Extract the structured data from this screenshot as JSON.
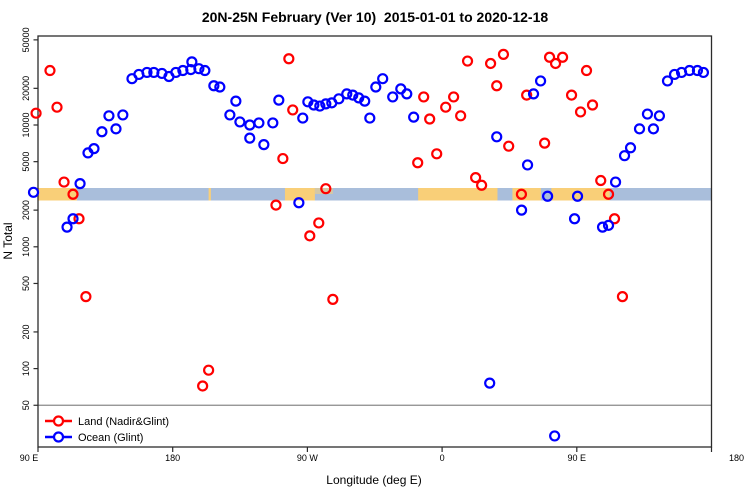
{
  "title": "20N-25N February (Ver 10)  2015-01-01 to 2020-12-18",
  "chart_data": {
    "type": "scatter",
    "xlabel": "Longitude (deg E)",
    "ylabel": "N Total",
    "x_axis": {
      "min_lon": 90,
      "max_lon": 540,
      "tick_lons": [
        90,
        180,
        270,
        360,
        450,
        540
      ],
      "tick_labels": [
        "90 E",
        "180",
        "90 W",
        "0",
        "90 E",
        "180"
      ]
    },
    "y_axis": {
      "scale": "log",
      "ticks": [
        50000,
        20000,
        10000,
        5000,
        2000,
        1000,
        500,
        200,
        100,
        50
      ],
      "ylim": [
        23,
        54000
      ]
    },
    "grid": "off",
    "legend_position": "bottom-left",
    "marker": "open-circle",
    "reference_line_y": 50,
    "reference_line_color": "#8a8a8a",
    "series": [
      {
        "id": "land",
        "name": "Land (Nadir&Glint)",
        "color": "#ff0000",
        "points": [
          [
            88.7,
            12500
          ],
          [
            98,
            28000
          ],
          [
            102.7,
            14000
          ],
          [
            107.4,
            3400
          ],
          [
            113.4,
            2700
          ],
          [
            117.4,
            1700
          ],
          [
            122,
            390
          ],
          [
            200,
            72
          ],
          [
            204,
            97
          ],
          [
            249,
            2200
          ],
          [
            253.6,
            5300
          ],
          [
            257.6,
            35000
          ],
          [
            260.2,
            13300
          ],
          [
            271.6,
            1230
          ],
          [
            277.6,
            1570
          ],
          [
            282.3,
            3000
          ],
          [
            287,
            370
          ],
          [
            343.7,
            4900
          ],
          [
            347.7,
            17000
          ],
          [
            351.7,
            11200
          ],
          [
            356.4,
            5800
          ],
          [
            362.4,
            14000
          ],
          [
            367.7,
            17000
          ],
          [
            372.4,
            11900
          ],
          [
            377,
            33500
          ],
          [
            382.4,
            3700
          ],
          [
            386.4,
            3200
          ],
          [
            392.4,
            32000
          ],
          [
            396.5,
            21000
          ],
          [
            401,
            38000
          ],
          [
            404.5,
            6700
          ],
          [
            413,
            2700
          ],
          [
            416.5,
            17600
          ],
          [
            428.5,
            7100
          ],
          [
            431.8,
            36000
          ],
          [
            435.8,
            32000
          ],
          [
            440.5,
            36000
          ],
          [
            446.5,
            17600
          ],
          [
            452.5,
            12800
          ],
          [
            456.5,
            28000
          ],
          [
            460.5,
            14600
          ],
          [
            466,
            3500
          ],
          [
            471.2,
            2700
          ],
          [
            475.2,
            1700
          ],
          [
            480.5,
            390
          ]
        ]
      },
      {
        "id": "ocean",
        "name": "Ocean (Glint)",
        "color": "#0000ff",
        "points": [
          [
            87,
            2800
          ],
          [
            109.4,
            1450
          ],
          [
            113.4,
            1700
          ],
          [
            118.1,
            3300
          ],
          [
            123.4,
            5900
          ],
          [
            127.4,
            6400
          ],
          [
            132.7,
            8800
          ],
          [
            137.4,
            11900
          ],
          [
            142.1,
            9300
          ],
          [
            146.7,
            12100
          ],
          [
            152.8,
            24000
          ],
          [
            157.4,
            26000
          ],
          [
            162.8,
            27000
          ],
          [
            167.4,
            27000
          ],
          [
            172.8,
            26500
          ],
          [
            177.5,
            25000
          ],
          [
            182.1,
            27000
          ],
          [
            186.8,
            28000
          ],
          [
            192.1,
            28500
          ],
          [
            192.8,
            33000
          ],
          [
            197.5,
            29000
          ],
          [
            201.5,
            28000
          ],
          [
            207.5,
            21000
          ],
          [
            211.5,
            20500
          ],
          [
            218.2,
            12100
          ],
          [
            222.2,
            15700
          ],
          [
            224.9,
            10600
          ],
          [
            231.5,
            10000
          ],
          [
            231.5,
            7800
          ],
          [
            237.6,
            10400
          ],
          [
            240.9,
            6900
          ],
          [
            246.9,
            10400
          ],
          [
            250.9,
            16000
          ],
          [
            264.3,
            2300
          ],
          [
            266.9,
            11400
          ],
          [
            270.3,
            15500
          ],
          [
            274.3,
            14600
          ],
          [
            278.3,
            14300
          ],
          [
            282.3,
            14900
          ],
          [
            286.3,
            15200
          ],
          [
            291,
            16400
          ],
          [
            296.3,
            18000
          ],
          [
            300.3,
            17600
          ],
          [
            304.3,
            16700
          ],
          [
            308.3,
            15700
          ],
          [
            311.7,
            11400
          ],
          [
            315.7,
            20500
          ],
          [
            320.3,
            24000
          ],
          [
            327,
            17000
          ],
          [
            332.4,
            19800
          ],
          [
            336.4,
            18000
          ],
          [
            341,
            11600
          ],
          [
            391.8,
            76
          ],
          [
            396.5,
            8000
          ],
          [
            413.1,
            2000
          ],
          [
            417.1,
            4700
          ],
          [
            421.1,
            18000
          ],
          [
            425.8,
            23000
          ],
          [
            430.5,
            2600
          ],
          [
            435.2,
            28
          ],
          [
            448.5,
            1700
          ],
          [
            450.5,
            2600
          ],
          [
            467.2,
            1450
          ],
          [
            471.2,
            1500
          ],
          [
            475.9,
            3400
          ],
          [
            481.9,
            5600
          ],
          [
            485.9,
            6500
          ],
          [
            491.9,
            9300
          ],
          [
            497.2,
            12300
          ],
          [
            501.2,
            9300
          ],
          [
            505.2,
            11900
          ],
          [
            510.6,
            23000
          ],
          [
            515.3,
            26000
          ],
          [
            520,
            27000
          ],
          [
            525.3,
            28000
          ],
          [
            530.6,
            28000
          ],
          [
            534.6,
            27000
          ]
        ]
      }
    ],
    "land_ocean_strip": {
      "description": "land/ocean map strip across 20N-25N band",
      "value_center": 2600,
      "ocean_color": "#a9bedb",
      "land_color": "#f9cf78",
      "segments": [
        {
          "type": "land",
          "from": 90,
          "to": 116
        },
        {
          "type": "land",
          "from": 204,
          "to": 205.5
        },
        {
          "type": "land",
          "from": 255,
          "to": 275
        },
        {
          "type": "land_partial",
          "from": 275,
          "to": 287
        },
        {
          "type": "land",
          "from": 344,
          "to": 397
        },
        {
          "type": "land",
          "from": 407,
          "to": 426
        },
        {
          "type": "land",
          "from": 433,
          "to": 472
        }
      ]
    }
  },
  "legend": {
    "land_label": "Land (Nadir&Glint)",
    "ocean_label": "Ocean (Glint)"
  }
}
